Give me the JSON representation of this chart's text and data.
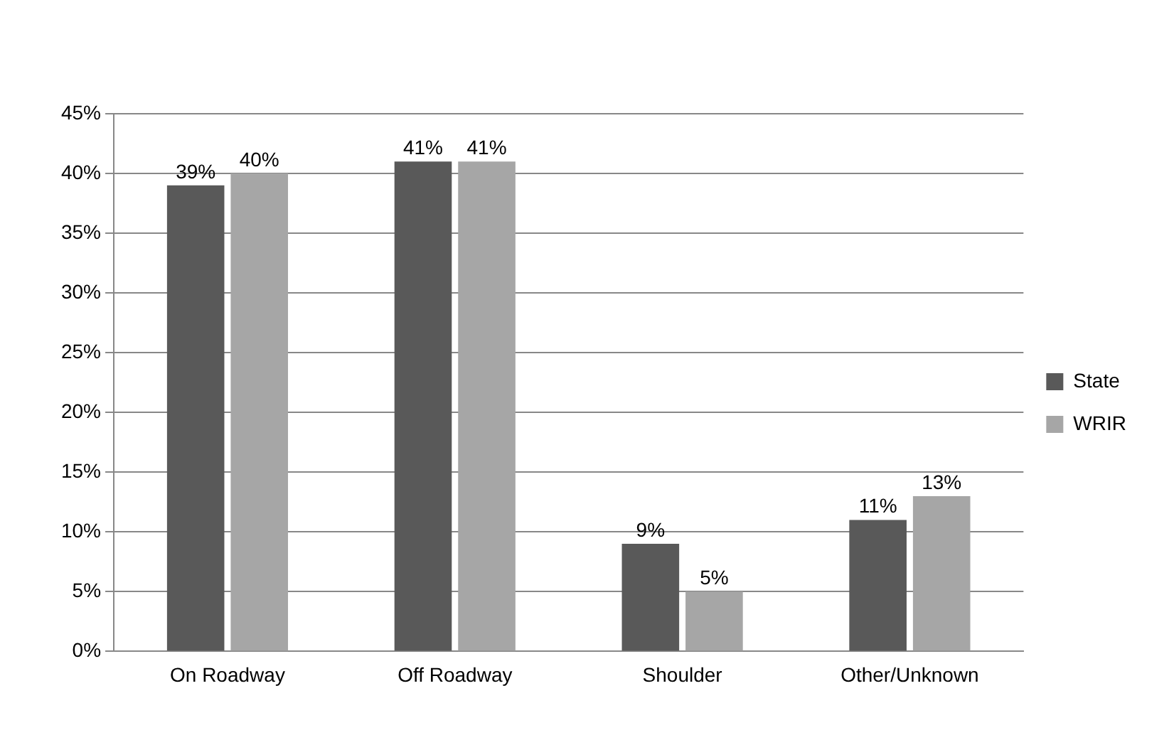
{
  "chart_data": {
    "type": "bar",
    "categories": [
      "On Roadway",
      "Off Roadway",
      "Shoulder",
      "Other/Unknown"
    ],
    "series": [
      {
        "name": "State",
        "color": "#595959",
        "values": [
          39,
          41,
          9,
          11
        ],
        "value_labels": [
          "39%",
          "41%",
          "9%",
          "11%"
        ]
      },
      {
        "name": "WRIR",
        "color": "#a6a6a6",
        "values": [
          40,
          41,
          5,
          13
        ],
        "value_labels": [
          "40%",
          "41%",
          "5%",
          "13%"
        ]
      }
    ],
    "ylim": [
      0,
      45
    ],
    "yticks": [
      {
        "value": 0,
        "label": "0%"
      },
      {
        "value": 5,
        "label": "5%"
      },
      {
        "value": 10,
        "label": "10%"
      },
      {
        "value": 15,
        "label": "15%"
      },
      {
        "value": 20,
        "label": "20%"
      },
      {
        "value": 25,
        "label": "25%"
      },
      {
        "value": 30,
        "label": "30%"
      },
      {
        "value": 35,
        "label": "35%"
      },
      {
        "value": 40,
        "label": "40%"
      },
      {
        "value": 45,
        "label": "45%"
      }
    ],
    "grid": "y",
    "legend": "right"
  }
}
